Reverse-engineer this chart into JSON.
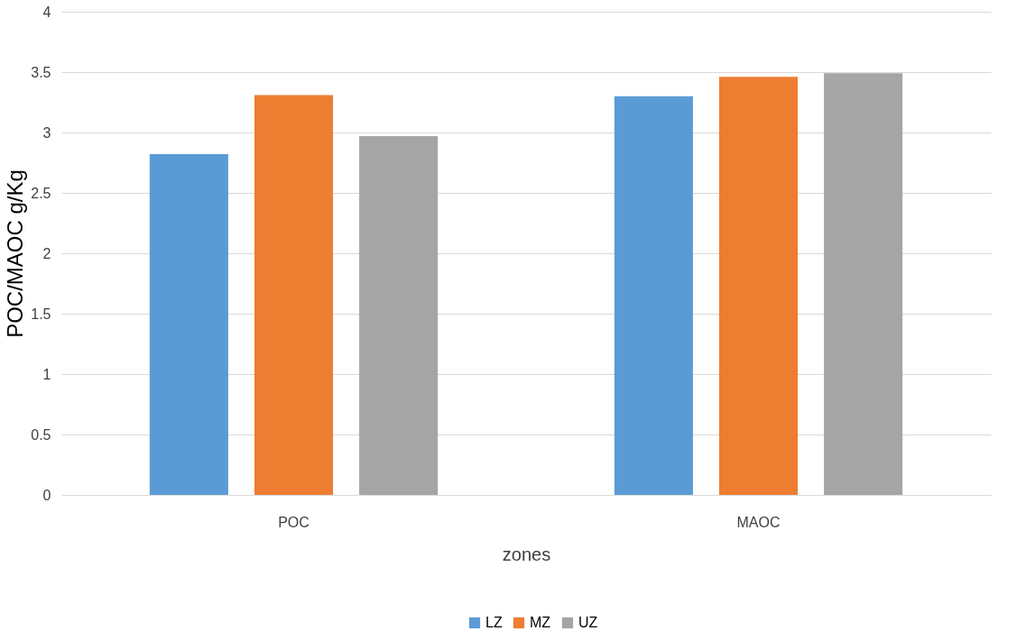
{
  "chart_data": {
    "type": "bar",
    "xlabel": "zones",
    "ylabel": "POC/MAOC g/Kg",
    "categories": [
      "POC",
      "MAOC"
    ],
    "series": [
      {
        "name": "LZ",
        "color": "#5b9bd5",
        "values": [
          2.82,
          3.3
        ]
      },
      {
        "name": "MZ",
        "color": "#ed7d31",
        "values": [
          3.31,
          3.46
        ]
      },
      {
        "name": "UZ",
        "color": "#a5a5a5",
        "values": [
          2.97,
          3.49
        ]
      }
    ],
    "ylim": [
      0,
      4
    ],
    "yticks": [
      0,
      0.5,
      1,
      1.5,
      2,
      2.5,
      3,
      3.5,
      4
    ],
    "grid": "y",
    "legend": "bottom"
  }
}
